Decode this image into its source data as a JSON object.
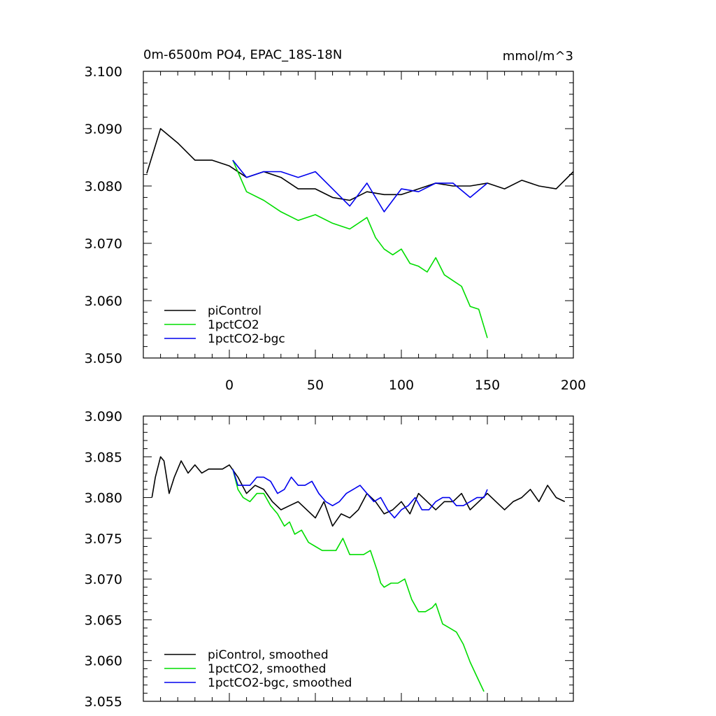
{
  "chart_data": [
    {
      "type": "line",
      "title": "0m-6500m PO4, EPAC_18S-18N",
      "units": "mmol/m^3",
      "xlim": [
        -50,
        200
      ],
      "ylim": [
        3.05,
        3.1
      ],
      "xticks": [
        0,
        50,
        100,
        150,
        200
      ],
      "yticks": [
        3.05,
        3.06,
        3.07,
        3.08,
        3.09,
        3.1
      ],
      "xtick_labels": [
        "0",
        "50",
        "100",
        "150",
        "200"
      ],
      "ytick_labels": [
        "3.050",
        "3.060",
        "3.070",
        "3.080",
        "3.090",
        "3.100"
      ],
      "legend_position": "bottom-left",
      "series": [
        {
          "name": "piControl",
          "color": "#000000",
          "x": [
            -48,
            -40,
            -30,
            -20,
            -10,
            0,
            10,
            20,
            30,
            40,
            50,
            60,
            70,
            80,
            90,
            100,
            110,
            120,
            130,
            140,
            150,
            160,
            170,
            180,
            190,
            200
          ],
          "values": [
            3.0822,
            3.09,
            3.0875,
            3.0845,
            3.0845,
            3.0835,
            3.0815,
            3.0825,
            3.0815,
            3.0795,
            3.0795,
            3.078,
            3.0775,
            3.079,
            3.0785,
            3.0785,
            3.0795,
            3.0805,
            3.08,
            3.08,
            3.0805,
            3.0795,
            3.081,
            3.08,
            3.0795,
            3.0825
          ]
        },
        {
          "name": "1pctCO2",
          "color": "#00dd00",
          "x": [
            2,
            10,
            20,
            30,
            40,
            50,
            60,
            70,
            80,
            85,
            90,
            95,
            100,
            105,
            110,
            115,
            120,
            125,
            130,
            135,
            140,
            145,
            150
          ],
          "values": [
            3.0845,
            3.079,
            3.0775,
            3.0755,
            3.074,
            3.075,
            3.0735,
            3.0725,
            3.0745,
            3.071,
            3.069,
            3.068,
            3.069,
            3.0665,
            3.066,
            3.065,
            3.0675,
            3.0645,
            3.0635,
            3.0625,
            3.059,
            3.0585,
            3.0535
          ]
        },
        {
          "name": "1pctCO2-bgc",
          "color": "#0000ee",
          "x": [
            2,
            10,
            20,
            30,
            40,
            50,
            60,
            70,
            80,
            90,
            100,
            110,
            120,
            130,
            140,
            150
          ],
          "values": [
            3.0845,
            3.0815,
            3.0825,
            3.0825,
            3.0815,
            3.0825,
            3.0795,
            3.0765,
            3.0805,
            3.0755,
            3.0795,
            3.079,
            3.0805,
            3.0805,
            3.078,
            3.0805
          ]
        }
      ]
    },
    {
      "type": "line",
      "title": "",
      "xlim": [
        -50,
        200
      ],
      "ylim": [
        3.055,
        3.09
      ],
      "xticks": [
        0,
        50,
        100,
        150,
        200
      ],
      "yticks": [
        3.055,
        3.06,
        3.065,
        3.07,
        3.075,
        3.08,
        3.085,
        3.09
      ],
      "ytick_labels": [
        "3.055",
        "3.060",
        "3.065",
        "3.070",
        "3.075",
        "3.080",
        "3.085",
        "3.090"
      ],
      "legend_position": "bottom-left",
      "series": [
        {
          "name": "piControl, smoothed",
          "color": "#000000",
          "x": [
            -45,
            -43,
            -40,
            -38,
            -35,
            -32,
            -28,
            -24,
            -20,
            -16,
            -12,
            -8,
            -4,
            0,
            5,
            10,
            15,
            20,
            25,
            30,
            35,
            40,
            45,
            50,
            55,
            60,
            65,
            70,
            75,
            80,
            85,
            90,
            95,
            100,
            105,
            110,
            115,
            120,
            125,
            130,
            135,
            140,
            145,
            150,
            155,
            160,
            165,
            170,
            175,
            180,
            185,
            190,
            195
          ],
          "values": [
            3.08,
            3.0825,
            3.085,
            3.0845,
            3.0805,
            3.0825,
            3.0845,
            3.083,
            3.084,
            3.083,
            3.0835,
            3.0835,
            3.0835,
            3.084,
            3.0825,
            3.0805,
            3.0815,
            3.081,
            3.0795,
            3.0785,
            3.079,
            3.0795,
            3.0785,
            3.0775,
            3.0795,
            3.0765,
            3.078,
            3.0775,
            3.0785,
            3.0805,
            3.0795,
            3.078,
            3.0785,
            3.0795,
            3.078,
            3.0805,
            3.0795,
            3.0785,
            3.0795,
            3.0795,
            3.0805,
            3.0785,
            3.0795,
            3.0805,
            3.0795,
            3.0785,
            3.0795,
            3.08,
            3.081,
            3.0795,
            3.0815,
            3.08,
            3.0795
          ]
        },
        {
          "name": "1pctCO2, smoothed",
          "color": "#00dd00",
          "x": [
            2,
            5,
            8,
            12,
            16,
            20,
            24,
            28,
            32,
            35,
            38,
            42,
            46,
            50,
            54,
            58,
            62,
            66,
            70,
            74,
            78,
            82,
            86,
            88,
            90,
            94,
            98,
            102,
            106,
            110,
            114,
            118,
            120,
            124,
            128,
            132,
            136,
            140,
            144,
            148
          ],
          "values": [
            3.0835,
            3.081,
            3.08,
            3.0795,
            3.0805,
            3.0805,
            3.079,
            3.078,
            3.0765,
            3.077,
            3.0755,
            3.076,
            3.0745,
            3.074,
            3.0735,
            3.0735,
            3.0735,
            3.075,
            3.073,
            3.073,
            3.073,
            3.0735,
            3.071,
            3.0695,
            3.069,
            3.0695,
            3.0695,
            3.07,
            3.0675,
            3.066,
            3.066,
            3.0665,
            3.067,
            3.0645,
            3.064,
            3.0635,
            3.062,
            3.0598,
            3.058,
            3.0562
          ]
        },
        {
          "name": "1pctCO2-bgc, smoothed",
          "color": "#0000ee",
          "x": [
            2,
            5,
            8,
            12,
            16,
            20,
            24,
            28,
            32,
            36,
            40,
            44,
            48,
            52,
            56,
            60,
            64,
            68,
            72,
            76,
            80,
            84,
            88,
            92,
            96,
            100,
            104,
            108,
            112,
            116,
            120,
            124,
            128,
            132,
            136,
            140,
            144,
            148,
            150
          ],
          "values": [
            3.0835,
            3.0815,
            3.0815,
            3.0815,
            3.0825,
            3.0825,
            3.082,
            3.0805,
            3.081,
            3.0825,
            3.0815,
            3.0815,
            3.082,
            3.0805,
            3.0795,
            3.079,
            3.0795,
            3.0805,
            3.081,
            3.0815,
            3.0805,
            3.0795,
            3.08,
            3.0785,
            3.0775,
            3.0785,
            3.079,
            3.08,
            3.0785,
            3.0785,
            3.0795,
            3.08,
            3.08,
            3.079,
            3.079,
            3.0795,
            3.08,
            3.08,
            3.081
          ]
        }
      ]
    }
  ]
}
